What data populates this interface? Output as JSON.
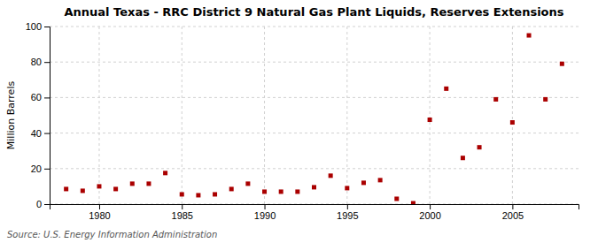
{
  "chart_data": {
    "type": "scatter",
    "title": "Annual Texas - RRC District 9 Natural Gas Plant Liquids, Reserves Extensions",
    "ylabel": "Million Barrels",
    "source": "Source: U.S. Energy Information Administration",
    "x": [
      1978,
      1979,
      1980,
      1981,
      1982,
      1983,
      1984,
      1985,
      1986,
      1987,
      1988,
      1989,
      1990,
      1991,
      1992,
      1993,
      1994,
      1995,
      1996,
      1997,
      1998,
      1999,
      2000,
      2001,
      2002,
      2003,
      2004,
      2005,
      2006,
      2007,
      2008
    ],
    "values": [
      8.5,
      7.5,
      10.0,
      8.5,
      11.5,
      11.5,
      17.5,
      5.5,
      5.0,
      5.5,
      8.5,
      11.5,
      7.0,
      7.0,
      7.0,
      9.5,
      16.0,
      9.0,
      12.0,
      13.5,
      3.0,
      0.5,
      47.5,
      65.0,
      26.0,
      32.0,
      59.0,
      46.0,
      95.0,
      59.0,
      79.0
    ],
    "color": "#aa0000",
    "marker": "square",
    "xlim": [
      1977,
      2009
    ],
    "ylim": [
      0,
      100
    ],
    "xticks": [
      1980,
      1985,
      1990,
      1995,
      2000,
      2005
    ],
    "yticks": [
      0,
      20,
      40,
      60,
      80,
      100
    ],
    "grid": true
  }
}
